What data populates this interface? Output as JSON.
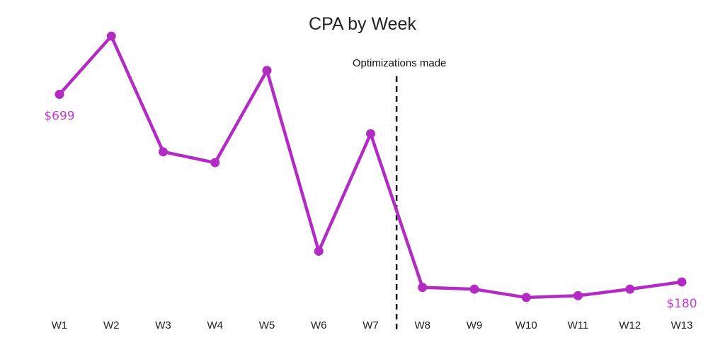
{
  "chart_data": {
    "type": "line",
    "title": "CPA by Week",
    "xlabel": "",
    "ylabel": "",
    "categories": [
      "W1",
      "W2",
      "W3",
      "W4",
      "W5",
      "W6",
      "W7",
      "W8",
      "W9",
      "W10",
      "W11",
      "W12",
      "W13"
    ],
    "series": [
      {
        "values": [
          699,
          860,
          540,
          510,
          765,
          265,
          590,
          165,
          160,
          137,
          142,
          160,
          180
        ]
      }
    ],
    "data_labels": [
      {
        "index": 0,
        "text": "$699",
        "position": "below"
      },
      {
        "index": 12,
        "text": "$180",
        "position": "below"
      }
    ],
    "annotation": {
      "text": "Optimizations made",
      "between": [
        "W7",
        "W8"
      ],
      "style": "dashed-vertical-line"
    },
    "ylim": [
      0,
      960
    ],
    "grid": false,
    "legend": "none",
    "colors": {
      "line": "#b22bc3",
      "label": "#c43cd3",
      "annotation_line": "#111111"
    }
  }
}
